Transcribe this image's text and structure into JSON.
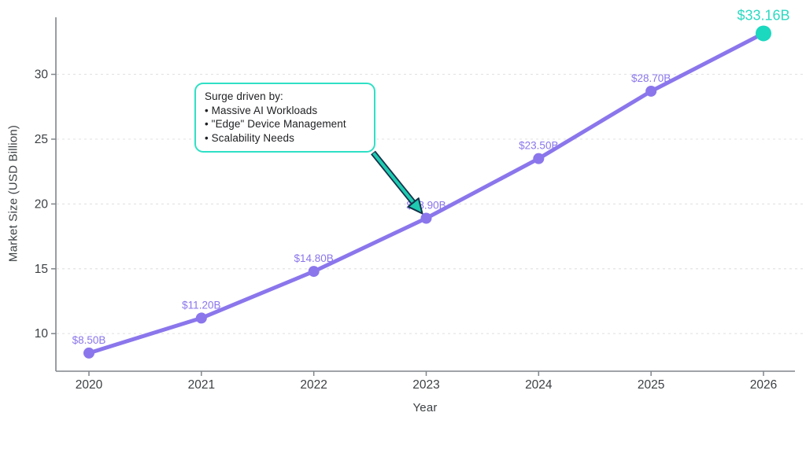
{
  "chart_data": {
    "type": "line",
    "title": "",
    "xlabel": "Year",
    "ylabel": "Market Size (USD Billion)",
    "x": [
      2020,
      2021,
      2022,
      2023,
      2024,
      2025,
      2026
    ],
    "values": [
      8.5,
      11.2,
      14.8,
      18.9,
      23.5,
      28.7,
      33.16
    ],
    "point_labels": [
      "$8.50B",
      "$11.20B",
      "$14.80B",
      "$18.90B",
      "$23.50B",
      "$28.70B",
      "$33.16B"
    ],
    "yticks": [
      10,
      15,
      20,
      25,
      30
    ],
    "ylim": [
      7.1,
      34.4
    ],
    "grid": "horizontal-dashed",
    "legend": "none",
    "highlight_index": 6,
    "colors": {
      "line": "#8b76ec",
      "point": "#8b76ec",
      "point_label": "#8b76ec",
      "highlight_point": "#1bd8bf",
      "highlight_label": "#2cd9c2",
      "axis": "#80868b",
      "tick_text": "#3c4043",
      "gridline": "#e4e4e4"
    }
  },
  "annotation": {
    "title": "Surge driven by:",
    "bullets": [
      "• Massive AI Workloads",
      "• \"Edge\" Device Management",
      "• Scalability Needs"
    ],
    "border_color": "#2fe0c5",
    "arrow_fill": "#1fcbb1",
    "arrow_stroke": "#14324a"
  }
}
